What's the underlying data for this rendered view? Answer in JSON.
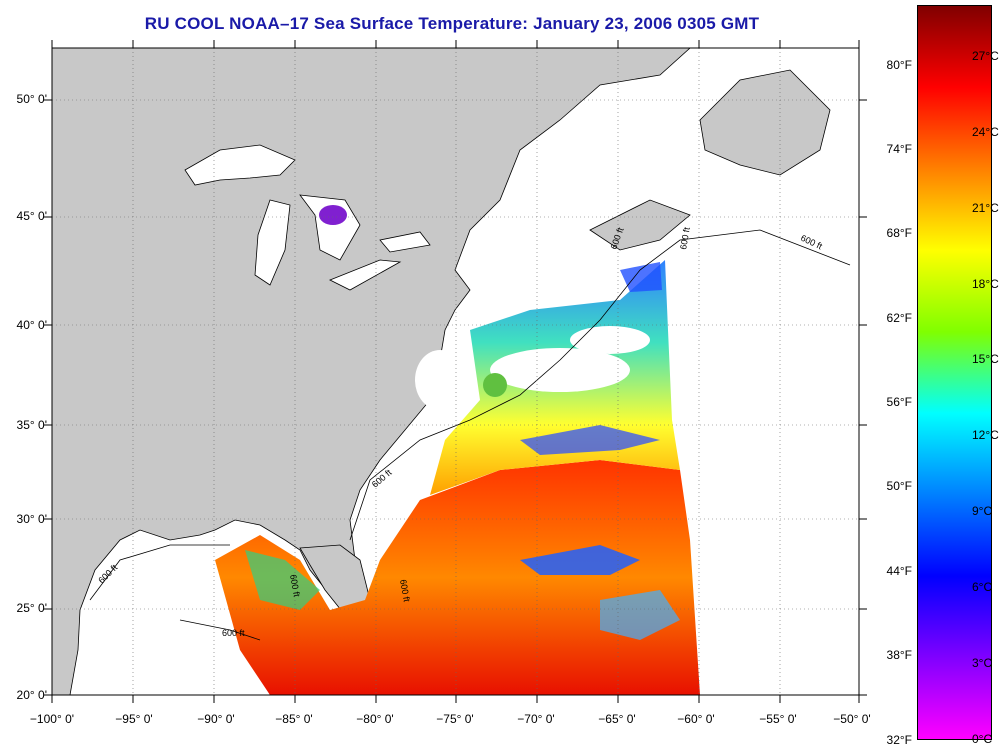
{
  "title": "RU COOL  NOAA–17  Sea Surface Temperature:  January 23, 2006 0305 GMT",
  "map": {
    "lat_labels": [
      "50° 0'",
      "45° 0'",
      "40° 0'",
      "35° 0'",
      "30° 0'",
      "25° 0'",
      "20° 0'"
    ],
    "lon_labels": [
      "−100° 0'",
      "−95° 0'",
      "−90° 0'",
      "−85° 0'",
      "−80° 0'",
      "−75° 0'",
      "−70° 0'",
      "−65° 0'",
      "−60° 0'",
      "−55° 0'",
      "−50° 0'"
    ],
    "contour_labels": [
      "600 ft",
      "600 ft",
      "600 ft",
      "600 ft",
      "600 ft",
      "600 ft",
      "600 ft",
      "600 ft"
    ],
    "land_color": "#c8c8c8",
    "cloud_color": "#ffffff"
  },
  "colorbar": {
    "fahrenheit_labels": [
      "80°F",
      "74°F",
      "68°F",
      "62°F",
      "56°F",
      "50°F",
      "44°F",
      "38°F",
      "32°F"
    ],
    "celsius_labels": [
      "27°C",
      "24°C",
      "21°C",
      "18°C",
      "15°C",
      "12°C",
      "9°C",
      "6°C",
      "3°C",
      "0°C"
    ],
    "gradient_colors": [
      "#800000",
      "#ff0000",
      "#ff8000",
      "#ffff00",
      "#80ff00",
      "#00ffff",
      "#0080ff",
      "#0000ff",
      "#8000ff",
      "#ff00ff"
    ]
  }
}
